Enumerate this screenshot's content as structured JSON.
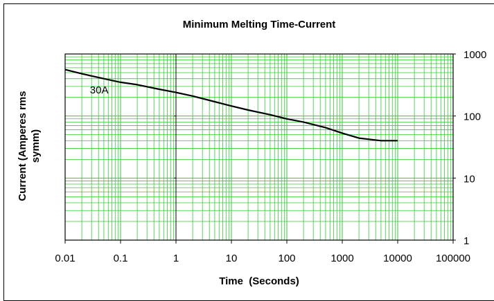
{
  "chart_data": {
    "type": "line",
    "title": "Minimum Melting Time-Current",
    "xlabel": "Time  (Seconds)",
    "ylabel": "Current (Amperes rms symm)",
    "x_scale": "log",
    "y_scale": "log",
    "xlim": [
      0.01,
      100000
    ],
    "ylim": [
      1,
      1000
    ],
    "x_ticks": [
      "0.01",
      "0.1",
      "1",
      "10",
      "100",
      "1000",
      "10000",
      "100000"
    ],
    "y_ticks": [
      "1000",
      "100",
      "10",
      "1"
    ],
    "grid": true,
    "colors": {
      "grid": "#33cc33",
      "line": "#000000",
      "frame": "#000000"
    },
    "series": [
      {
        "name": "30A",
        "x": [
          0.01,
          0.02,
          0.05,
          0.1,
          0.2,
          0.5,
          1,
          2,
          5,
          10,
          20,
          50,
          100,
          200,
          500,
          1000,
          2000,
          5000,
          10000
        ],
        "y": [
          560,
          480,
          400,
          350,
          320,
          270,
          240,
          210,
          170,
          145,
          125,
          105,
          90,
          80,
          65,
          53,
          44,
          40,
          40
        ]
      }
    ]
  }
}
